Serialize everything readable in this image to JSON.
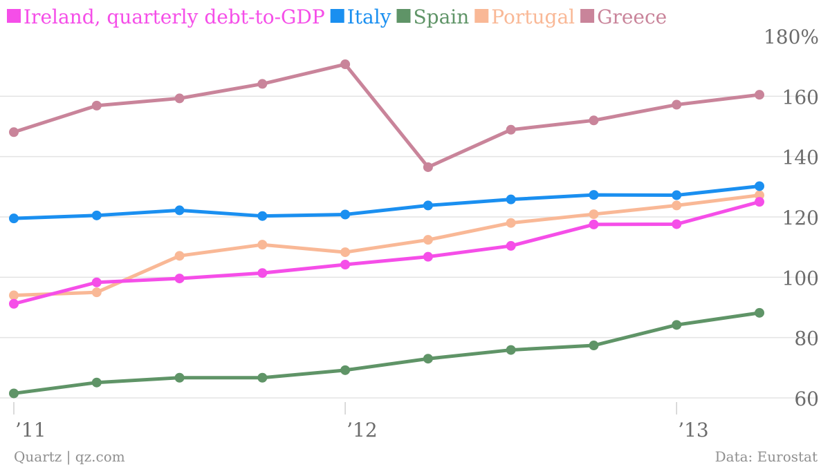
{
  "chart_data": {
    "type": "line",
    "title": "",
    "ylim": [
      57,
      180
    ],
    "y_ticks": [
      "180%",
      "160",
      "140",
      "120",
      "100",
      "80",
      "60"
    ],
    "y_tick_values": [
      180,
      160,
      140,
      120,
      100,
      80,
      60
    ],
    "x_ticks": [
      "’11",
      "’12",
      "’13"
    ],
    "x_tick_positions": [
      0,
      4,
      8
    ],
    "x": [
      0,
      1,
      2,
      3,
      4,
      5,
      6,
      7,
      8,
      9
    ],
    "legend_placement": "top",
    "grid": true,
    "series": [
      {
        "name": "Greece",
        "color": "#c9849a",
        "values": [
          148.1,
          156.9,
          159.3,
          164.1,
          170.6,
          136.5,
          148.9,
          152.0,
          157.2,
          160.5
        ]
      },
      {
        "name": "Portugal",
        "color": "#f9b896",
        "values": [
          94.0,
          95.0,
          107.1,
          110.8,
          108.3,
          112.4,
          118.0,
          120.9,
          123.8,
          127.2
        ]
      },
      {
        "name": "Spain",
        "color": "#5f9467",
        "values": [
          61.5,
          65.1,
          66.7,
          66.7,
          69.2,
          73.0,
          75.9,
          77.4,
          84.2,
          88.2
        ]
      },
      {
        "name": "Italy",
        "color": "#1a8ff0",
        "values": [
          119.5,
          120.5,
          122.2,
          120.3,
          120.8,
          123.8,
          125.8,
          127.3,
          127.2,
          130.2
        ]
      },
      {
        "name": "Ireland, quarterly debt-to-GDP",
        "color": "#f54ee8",
        "values": [
          91.2,
          98.3,
          99.6,
          101.4,
          104.2,
          106.8,
          110.4,
          117.5,
          117.6,
          125.0
        ]
      }
    ],
    "legend_order": [
      "Ireland, quarterly debt-to-GDP",
      "Italy",
      "Spain",
      "Portugal",
      "Greece"
    ]
  },
  "source_left": "Quartz | qz.com",
  "source_right": "Data: Eurostat"
}
